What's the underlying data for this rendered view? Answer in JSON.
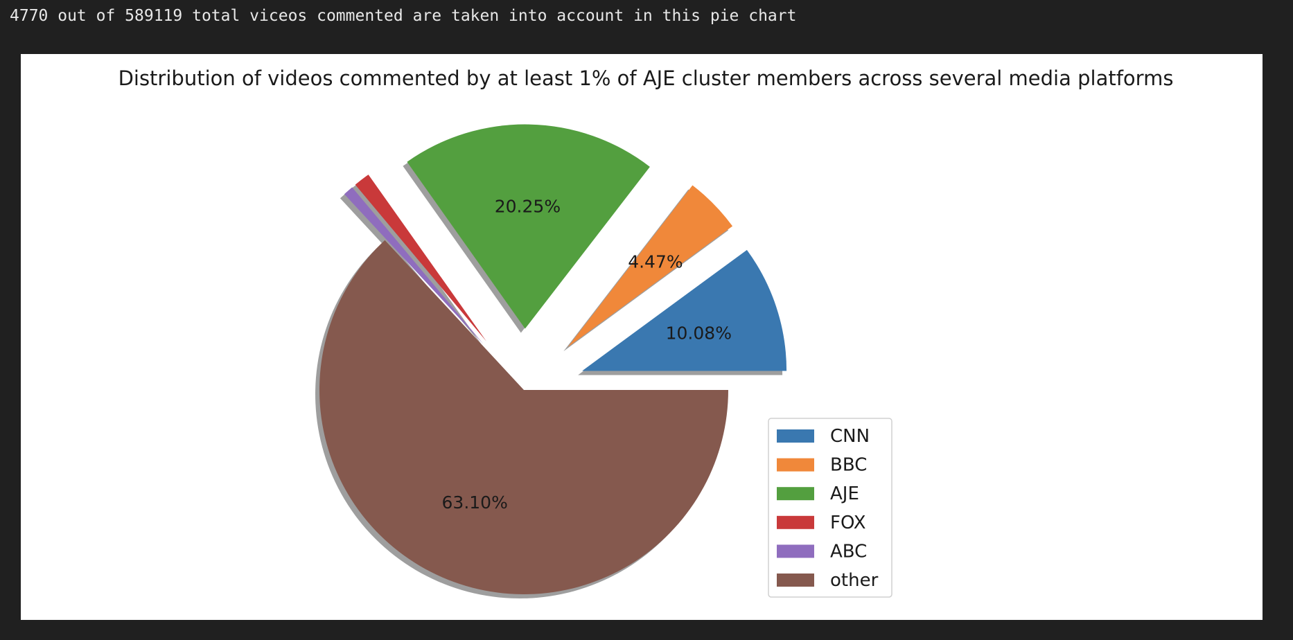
{
  "output": {
    "text": "4770 out of 589119 total viceos commented are taken into account in this pie chart"
  },
  "chart_data": {
    "type": "pie",
    "title": "Distribution of videos commented by at least 1% of AJE cluster members across several media platforms",
    "labels": [
      "CNN",
      "BBC",
      "AJE",
      "FOX",
      "ABC",
      "other"
    ],
    "values": [
      10.08,
      4.47,
      20.25,
      1.29,
      0.81,
      63.1
    ],
    "autopct_labels": [
      "10.08%",
      "4.47%",
      "20.25%",
      "",
      "",
      "63.10%"
    ],
    "colors": [
      "#3a78b0",
      "#f0883a",
      "#539f3f",
      "#c9393a",
      "#8f6dbe",
      "#85594e"
    ],
    "start_angle_deg": 0,
    "explode": [
      0.3,
      0.3,
      0.3,
      0.3,
      0.3,
      0
    ],
    "shadow": true,
    "legend_position": "lower-right"
  }
}
